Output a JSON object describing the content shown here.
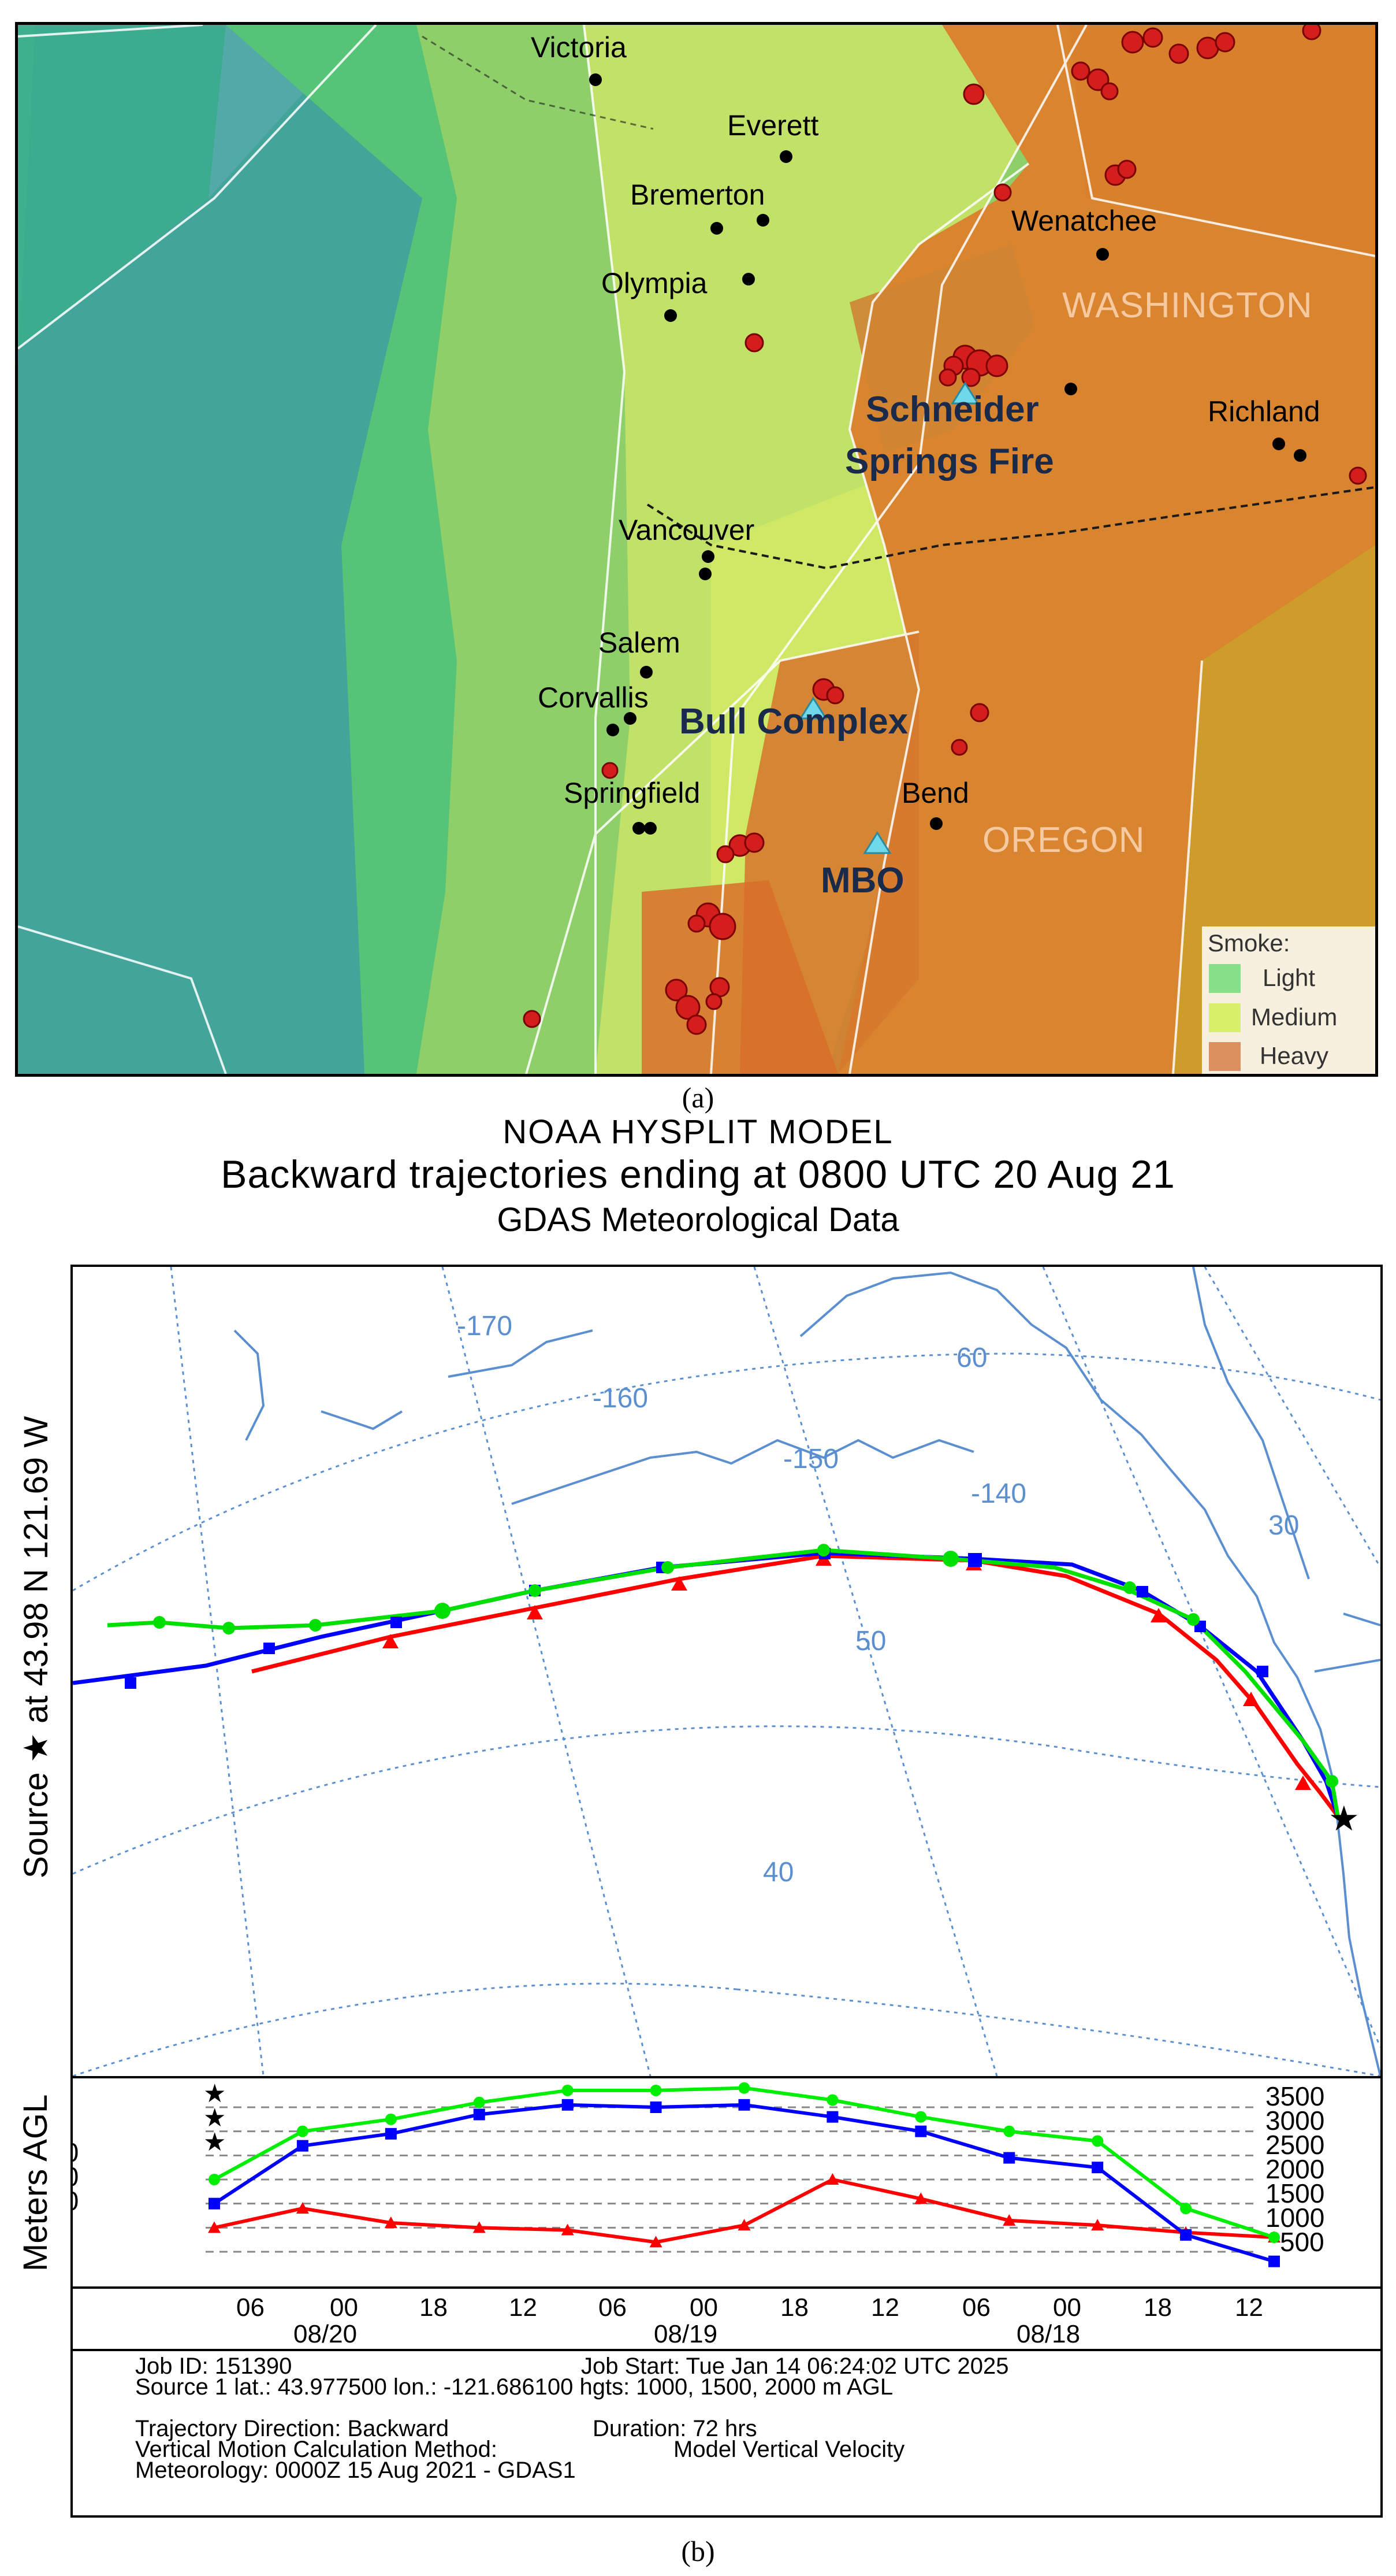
{
  "panel_a": {
    "caption": "(a)",
    "cities": [
      {
        "name": "Victoria"
      },
      {
        "name": "Everett"
      },
      {
        "name": "Bremerton"
      },
      {
        "name": "Wenatchee"
      },
      {
        "name": "Olympia"
      },
      {
        "name": "Richland"
      },
      {
        "name": "Vancouver"
      },
      {
        "name": "Salem"
      },
      {
        "name": "Corvallis"
      },
      {
        "name": "Springfield"
      },
      {
        "name": "Bend"
      }
    ],
    "states": [
      "WASHINGTON",
      "OREGON"
    ],
    "sites": [
      "Schneider",
      "Springs Fire",
      "Bull Complex",
      "MBO"
    ],
    "legend": {
      "title": "Smoke:",
      "items": [
        {
          "label": "Light",
          "color": "#86e08a"
        },
        {
          "label": "Medium",
          "color": "#d8f06a"
        },
        {
          "label": "Heavy",
          "color": "#dc9060"
        }
      ]
    },
    "colors": {
      "ocean": "#6fa8c8",
      "light_smoke": "#4ec97a",
      "medium_smoke": "#b8df63",
      "heavy_smoke": "#d97e32",
      "fire": "#d41e1e",
      "site_marker": "#6fd8ea"
    },
    "icons": [
      "fire-point-icon",
      "city-dot-icon",
      "site-triangle-icon"
    ]
  },
  "panel_b": {
    "caption": "(b)",
    "title1": "NOAA HYSPLIT MODEL",
    "title2": "Backward trajectories ending at 0800 UTC 20 Aug 21",
    "title3": "GDAS Meteorological Data",
    "map_ylabel": "Source ★ at   43.98 N  121.69 W",
    "lon_labels": [
      "-170",
      "-160",
      "-150",
      "-140"
    ],
    "lat_labels": [
      "60",
      "50",
      "40"
    ],
    "lat_label_east": "30",
    "height_ylabel": "Meters AGL",
    "source_heights": [
      "2000",
      "1500",
      "1000"
    ],
    "right_ticks": [
      "3500",
      "3000",
      "2500",
      "2000",
      "1500",
      "1000",
      "500"
    ],
    "time_ticks": [
      "06",
      "00",
      "18",
      "12",
      "06",
      "00",
      "18",
      "12",
      "06",
      "00",
      "18",
      "12"
    ],
    "date_labels": [
      "08/20",
      "08/19",
      "08/18"
    ],
    "info": {
      "job_id": "Job ID: 151390",
      "job_start": "Job Start: Tue Jan 14 06:24:02 UTC 2025",
      "source": "Source 1 lat.: 43.977500  lon.: -121.686100  hgts: 1000, 1500, 2000 m AGL",
      "direction": "Trajectory Direction: Backward",
      "duration": "Duration: 72 hrs",
      "vertical_label": "Vertical Motion Calculation Method:",
      "vertical_value": "Model Vertical Velocity",
      "meteorology": "Meteorology: 0000Z 15 Aug 2021 - GDAS1"
    },
    "series_colors": {
      "h1000": "#ff0000",
      "h1500": "#0000ff",
      "h2000": "#00ee00"
    },
    "height_profile": {
      "hours_before_end": [
        0,
        6,
        12,
        18,
        24,
        30,
        36,
        42,
        48,
        54,
        60,
        66,
        72
      ],
      "h1000": [
        1000,
        1400,
        1100,
        1000,
        950,
        700,
        1050,
        2000,
        1600,
        1150,
        1050,
        900,
        800
      ],
      "h1500": [
        1500,
        2700,
        2950,
        3350,
        3550,
        3500,
        3550,
        3300,
        3000,
        2450,
        2250,
        850,
        300
      ],
      "h2000": [
        2000,
        3000,
        3250,
        3600,
        3850,
        3850,
        3900,
        3650,
        3300,
        3000,
        2800,
        1400,
        800
      ]
    }
  }
}
